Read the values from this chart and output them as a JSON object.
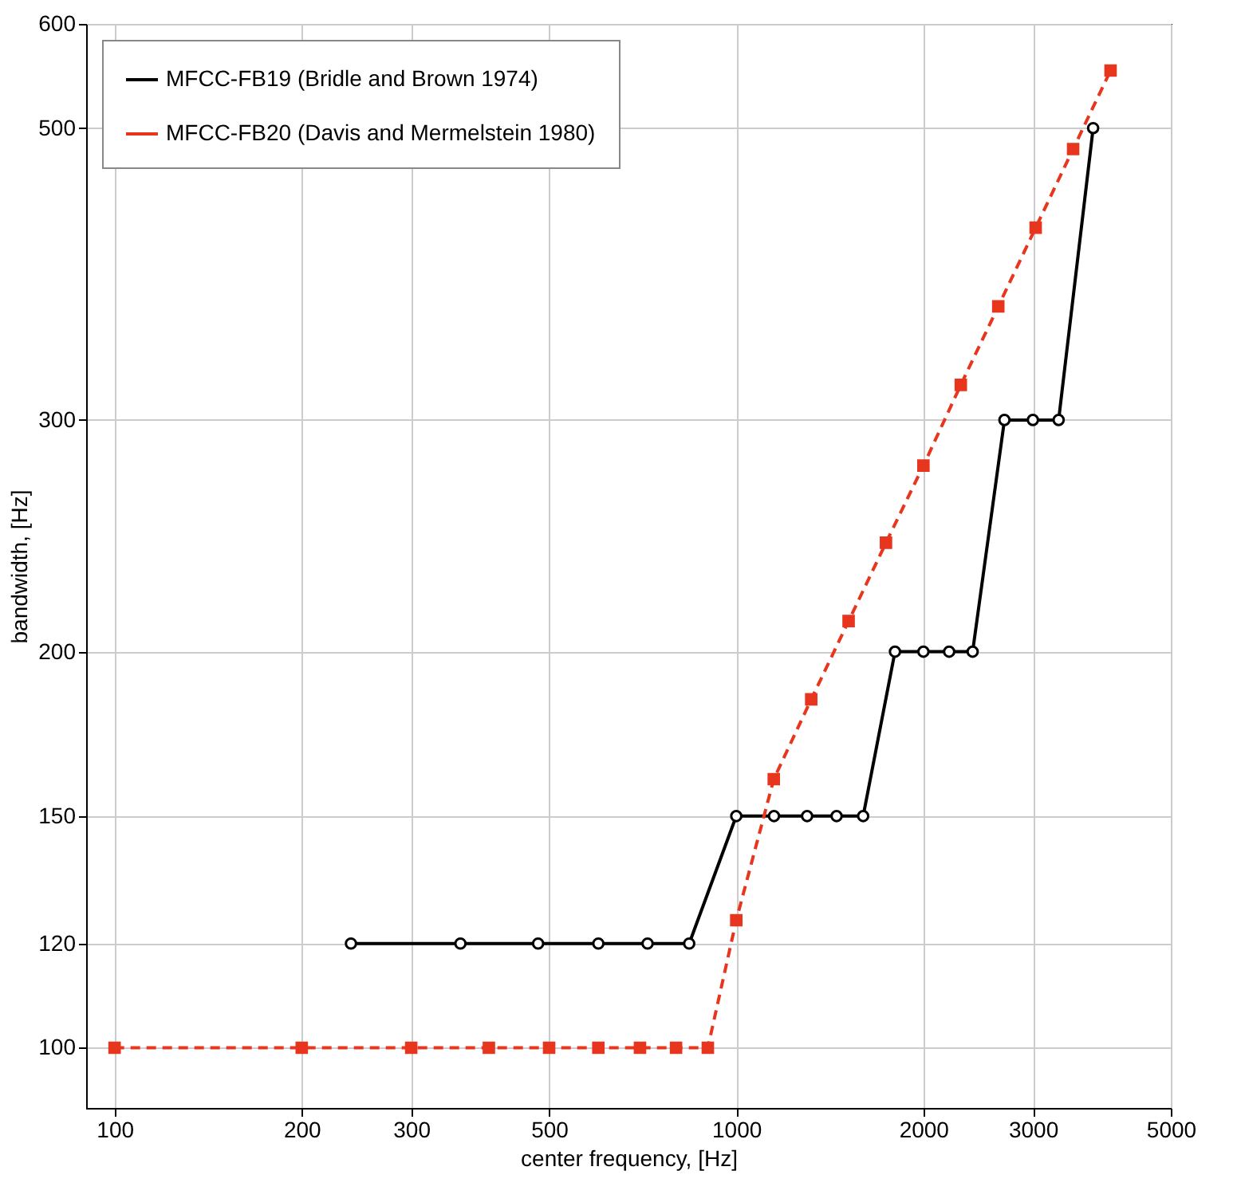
{
  "chart_data": {
    "type": "line",
    "xlabel": "center frequency, [Hz]",
    "ylabel": "bandwidth, [Hz]",
    "log": "xy",
    "grid": true,
    "legend": "top left",
    "xlim": [
      90,
      5000
    ],
    "xticks": [
      100,
      200,
      300,
      500,
      1000,
      2000,
      3000,
      5000
    ],
    "ylim": [
      90,
      600
    ],
    "yticks": [
      100,
      120,
      150,
      200,
      300,
      500,
      600
    ],
    "series": [
      {
        "name": "MFCC-FB19 (Bridle and Brown 1974)",
        "color": "#000000",
        "marker": "circle",
        "line_style": "solid",
        "x": [
          240,
          360,
          480,
          600,
          720,
          840,
          1000,
          1150,
          1300,
          1450,
          1600,
          1800,
          2000,
          2200,
          2400,
          2700,
          3000,
          3300,
          3750
        ],
        "values": [
          120,
          120,
          120,
          120,
          120,
          120,
          150,
          150,
          150,
          150,
          150,
          200,
          200,
          200,
          200,
          300,
          300,
          300,
          500
        ]
      },
      {
        "name": "MFCC-FB20 (Davis and Mermelstein 1980)",
        "color": "#e8351e",
        "marker": "square",
        "line_style": "dashed",
        "x": [
          100,
          200,
          300,
          400,
          500,
          600,
          700,
          800,
          900,
          1000,
          1149,
          1320,
          1516,
          1741,
          2000,
          2297,
          2639,
          3031,
          3482,
          4000
        ],
        "values": [
          100,
          100,
          100,
          100,
          100,
          100,
          100,
          100,
          100,
          125,
          160,
          184,
          211,
          242,
          277,
          319,
          366,
          420,
          482,
          553
        ]
      }
    ]
  }
}
